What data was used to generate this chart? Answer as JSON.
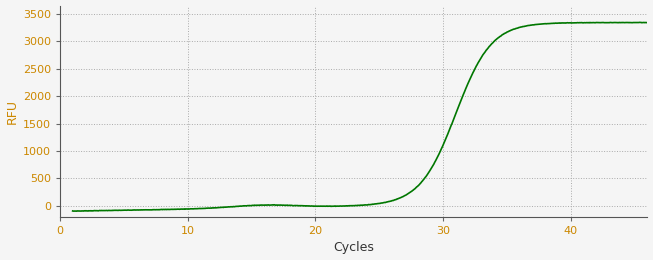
{
  "xlabel": "Cycles",
  "ylabel": "RFU",
  "xlim": [
    0,
    46
  ],
  "ylim": [
    -200,
    3650
  ],
  "yticks": [
    0,
    500,
    1000,
    1500,
    2000,
    2500,
    3000,
    3500
  ],
  "xticks": [
    0,
    10,
    20,
    30,
    40
  ],
  "line_color": "#007700",
  "line_width": 1.2,
  "background_color": "#f5f5f5",
  "grid_color": "#aaaaaa",
  "sigmoid_L": 3340,
  "sigmoid_k": 0.72,
  "sigmoid_x0": 31.0,
  "x_start": 1,
  "x_end": 46,
  "num_points": 1000,
  "tick_label_color": "#cc8800",
  "xlabel_color": "#333333",
  "ylabel_color": "#cc8800"
}
